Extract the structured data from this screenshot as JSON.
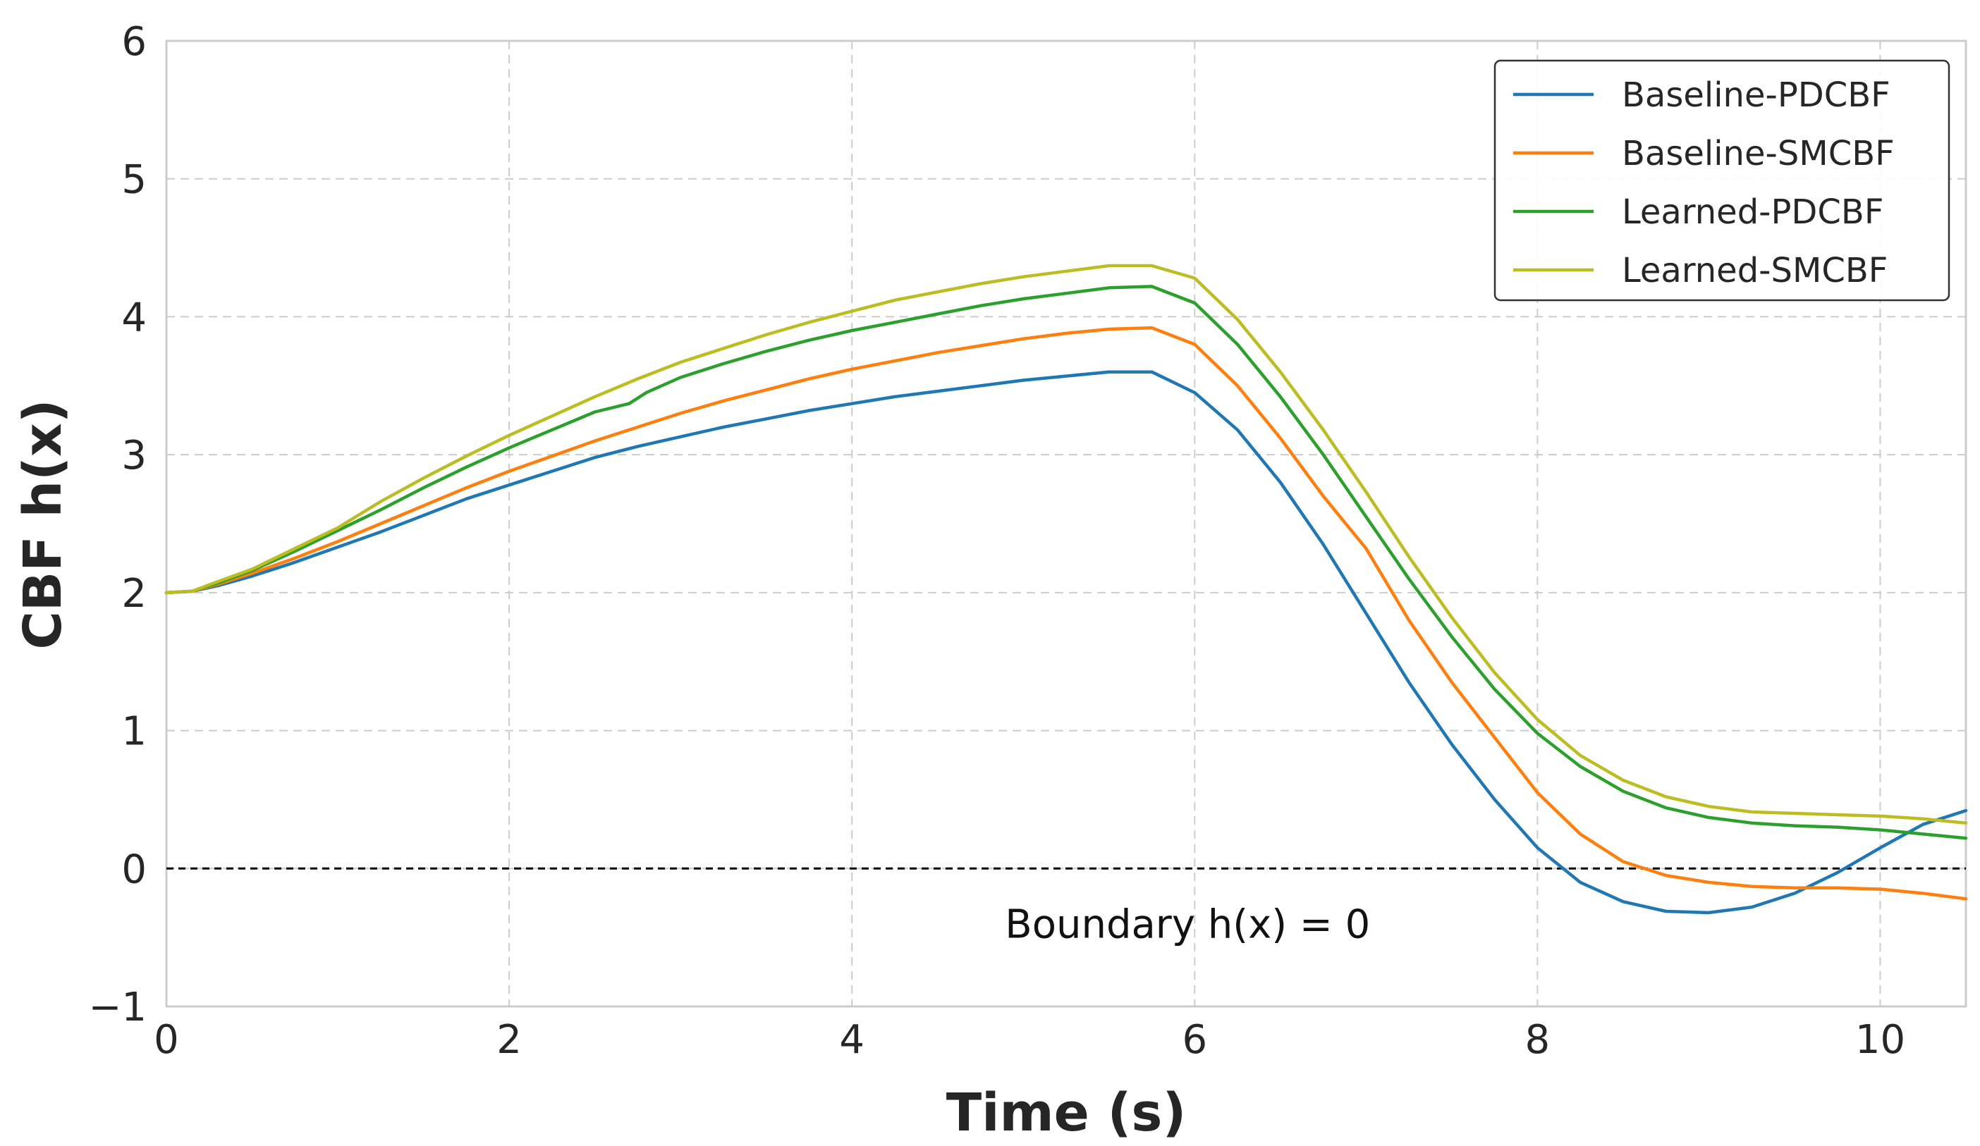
{
  "chart_data": {
    "type": "line",
    "xlabel": "Time (s)",
    "ylabel": "CBF h(x)",
    "xlim": [
      0,
      10.5
    ],
    "ylim": [
      -1,
      6
    ],
    "xticks": [
      0,
      2,
      4,
      6,
      8,
      10
    ],
    "yticks": [
      -1,
      0,
      1,
      2,
      3,
      4,
      5,
      6
    ],
    "ytick_labels": [
      "−1",
      "0",
      "1",
      "2",
      "3",
      "4",
      "5",
      "6"
    ],
    "grid": true,
    "legend_position": "top-right",
    "reference_line": {
      "y": 0,
      "style": "dashed",
      "color": "#000000"
    },
    "annotation": {
      "text": "Boundary h(x) = 0",
      "x": 6.0,
      "y": -0.4
    },
    "series": [
      {
        "name": "Baseline-PDCBF",
        "color": "#1f77b4",
        "x": [
          0,
          0.15,
          0.3,
          0.5,
          0.75,
          1.0,
          1.25,
          1.5,
          1.75,
          2.0,
          2.25,
          2.5,
          2.75,
          3.0,
          3.25,
          3.5,
          3.75,
          4.0,
          4.25,
          4.5,
          4.75,
          5.0,
          5.25,
          5.5,
          5.75,
          6.0,
          6.25,
          6.5,
          6.75,
          7.0,
          7.25,
          7.5,
          7.75,
          8.0,
          8.25,
          8.5,
          8.75,
          9.0,
          9.25,
          9.5,
          9.75,
          10.0,
          10.25,
          10.5
        ],
        "y": [
          2.0,
          2.01,
          2.05,
          2.12,
          2.22,
          2.33,
          2.44,
          2.56,
          2.68,
          2.78,
          2.88,
          2.98,
          3.06,
          3.13,
          3.2,
          3.26,
          3.32,
          3.37,
          3.42,
          3.46,
          3.5,
          3.54,
          3.57,
          3.6,
          3.6,
          3.45,
          3.18,
          2.8,
          2.35,
          1.85,
          1.35,
          0.9,
          0.5,
          0.15,
          -0.1,
          -0.24,
          -0.31,
          -0.32,
          -0.28,
          -0.18,
          -0.03,
          0.15,
          0.32,
          0.42
        ]
      },
      {
        "name": "Baseline-SMCBF",
        "color": "#ff7f0e",
        "x": [
          0,
          0.15,
          0.3,
          0.5,
          0.75,
          1.0,
          1.25,
          1.5,
          1.75,
          2.0,
          2.25,
          2.5,
          2.75,
          3.0,
          3.25,
          3.5,
          3.75,
          4.0,
          4.25,
          4.5,
          4.75,
          5.0,
          5.25,
          5.5,
          5.75,
          6.0,
          6.25,
          6.5,
          6.75,
          7.0,
          7.25,
          7.5,
          7.75,
          8.0,
          8.25,
          8.5,
          8.75,
          9.0,
          9.25,
          9.5,
          9.75,
          10.0,
          10.25,
          10.5
        ],
        "y": [
          2.0,
          2.01,
          2.06,
          2.14,
          2.25,
          2.37,
          2.5,
          2.63,
          2.76,
          2.88,
          2.99,
          3.1,
          3.2,
          3.3,
          3.39,
          3.47,
          3.55,
          3.62,
          3.68,
          3.74,
          3.79,
          3.84,
          3.88,
          3.91,
          3.92,
          3.8,
          3.5,
          3.12,
          2.7,
          2.32,
          1.8,
          1.35,
          0.95,
          0.55,
          0.25,
          0.05,
          -0.05,
          -0.1,
          -0.13,
          -0.14,
          -0.14,
          -0.15,
          -0.18,
          -0.22
        ]
      },
      {
        "name": "Learned-PDCBF",
        "color": "#2ca02c",
        "x": [
          0,
          0.15,
          0.3,
          0.5,
          0.75,
          1.0,
          1.25,
          1.5,
          1.75,
          2.0,
          2.25,
          2.5,
          2.7,
          2.8,
          3.0,
          3.25,
          3.5,
          3.75,
          4.0,
          4.25,
          4.5,
          4.75,
          5.0,
          5.25,
          5.5,
          5.75,
          6.0,
          6.25,
          6.5,
          6.75,
          7.0,
          7.25,
          7.5,
          7.75,
          8.0,
          8.25,
          8.5,
          8.75,
          9.0,
          9.25,
          9.5,
          9.75,
          10.0,
          10.25,
          10.5
        ],
        "y": [
          2.0,
          2.01,
          2.07,
          2.16,
          2.3,
          2.45,
          2.6,
          2.76,
          2.91,
          3.05,
          3.18,
          3.31,
          3.37,
          3.45,
          3.56,
          3.66,
          3.75,
          3.83,
          3.9,
          3.96,
          4.02,
          4.08,
          4.13,
          4.17,
          4.21,
          4.22,
          4.1,
          3.8,
          3.42,
          3.0,
          2.55,
          2.1,
          1.68,
          1.3,
          0.98,
          0.74,
          0.56,
          0.44,
          0.37,
          0.33,
          0.31,
          0.3,
          0.28,
          0.25,
          0.22
        ]
      },
      {
        "name": "Learned-SMCBF",
        "color": "#bcbd22",
        "x": [
          0,
          0.15,
          0.3,
          0.5,
          0.75,
          1.0,
          1.25,
          1.5,
          1.75,
          2.0,
          2.25,
          2.5,
          2.75,
          3.0,
          3.25,
          3.5,
          3.75,
          4.0,
          4.25,
          4.5,
          4.75,
          5.0,
          5.25,
          5.5,
          5.75,
          6.0,
          6.25,
          6.5,
          6.75,
          7.0,
          7.25,
          7.5,
          7.75,
          8.0,
          8.25,
          8.5,
          8.75,
          9.0,
          9.25,
          9.5,
          9.75,
          10.0,
          10.25,
          10.5
        ],
        "y": [
          2.0,
          2.01,
          2.08,
          2.17,
          2.32,
          2.47,
          2.66,
          2.83,
          2.99,
          3.14,
          3.28,
          3.42,
          3.55,
          3.67,
          3.77,
          3.87,
          3.96,
          4.04,
          4.12,
          4.18,
          4.24,
          4.29,
          4.33,
          4.37,
          4.37,
          4.28,
          3.98,
          3.6,
          3.18,
          2.73,
          2.26,
          1.82,
          1.42,
          1.08,
          0.82,
          0.64,
          0.52,
          0.45,
          0.41,
          0.4,
          0.39,
          0.38,
          0.36,
          0.33
        ]
      }
    ]
  }
}
